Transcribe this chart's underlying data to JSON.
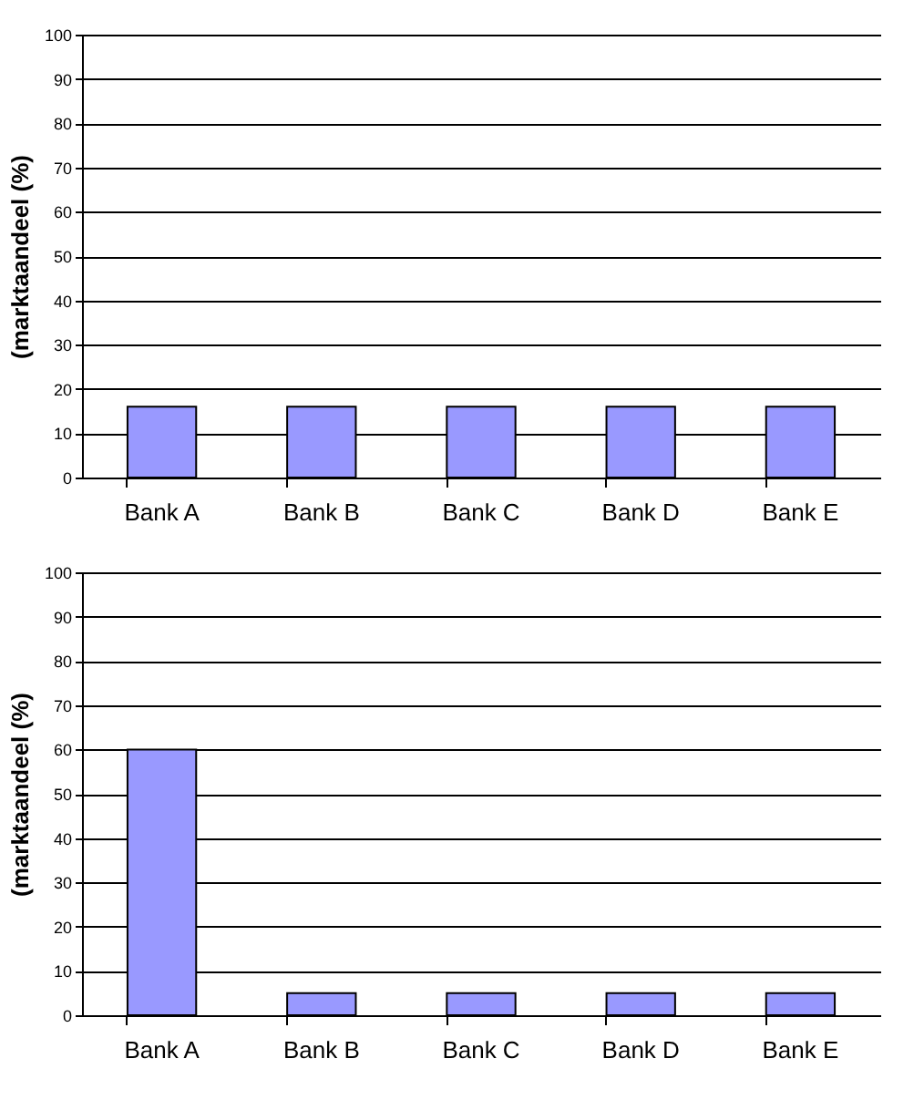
{
  "chart_data": [
    {
      "type": "bar",
      "ylabel": "(marktaandeel (%)",
      "categories": [
        "Bank A",
        "Bank B",
        "Bank C",
        "Bank D",
        "Bank E"
      ],
      "values": [
        16,
        16,
        16,
        16,
        16
      ],
      "color": "#9999ff",
      "ylim": [
        0,
        100
      ],
      "yticks": [
        0,
        10,
        20,
        30,
        40,
        50,
        60,
        70,
        80,
        90,
        100
      ],
      "grid": "y"
    },
    {
      "type": "bar",
      "ylabel": "(marktaandeel (%)",
      "categories": [
        "Bank A",
        "Bank B",
        "Bank C",
        "Bank D",
        "Bank E"
      ],
      "values": [
        60,
        5,
        5,
        5,
        5
      ],
      "color": "#9999ff",
      "ylim": [
        0,
        100
      ],
      "yticks": [
        0,
        10,
        20,
        30,
        40,
        50,
        60,
        70,
        80,
        90,
        100
      ],
      "grid": "y"
    }
  ]
}
